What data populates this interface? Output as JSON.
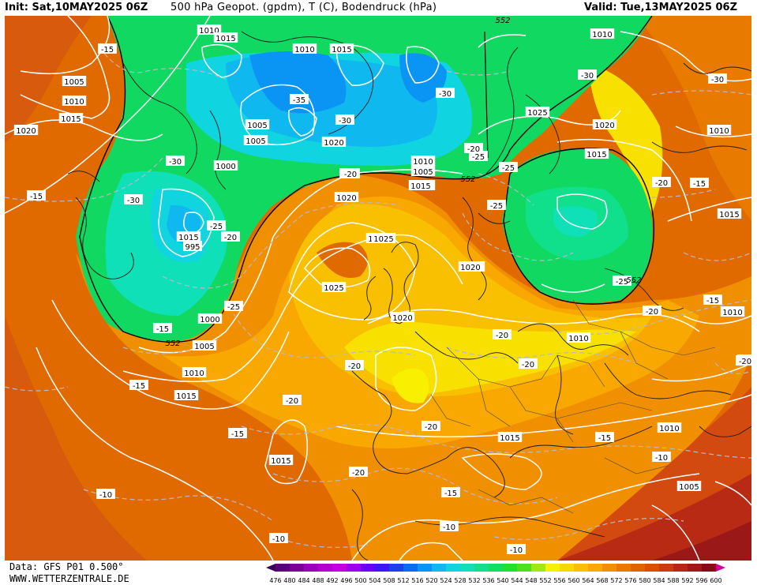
{
  "header": {
    "init": "Init: Sat,10MAY2025 06Z",
    "title": "500 hPa Geopot. (gpdm), T (C), Bodendruck (hPa)",
    "valid": "Valid: Tue,13MAY2025 06Z"
  },
  "footer": {
    "data_source": "Data: GFS P01 0.500°",
    "website": "WWW.WETTERZENTRALE.DE"
  },
  "legend": {
    "values": [
      476,
      480,
      484,
      488,
      492,
      496,
      500,
      504,
      508,
      512,
      516,
      520,
      524,
      528,
      532,
      536,
      540,
      544,
      548,
      552,
      556,
      560,
      564,
      568,
      572,
      576,
      580,
      584,
      588,
      592,
      596,
      600
    ],
    "colors": [
      "#3c0056",
      "#5a0078",
      "#7a0098",
      "#9a00b8",
      "#b400cc",
      "#c400e0",
      "#9c00f0",
      "#6a00f8",
      "#3c18f8",
      "#1a40f0",
      "#0a6cf0",
      "#0a94f4",
      "#10b8f0",
      "#10d4e0",
      "#10e0b8",
      "#10e08c",
      "#10e060",
      "#20e030",
      "#50e020",
      "#a0e810",
      "#f8f000",
      "#f8d800",
      "#f8c000",
      "#f8a800",
      "#f09000",
      "#e87800",
      "#e06400",
      "#d85000",
      "#c83c10",
      "#b82810",
      "#a01818",
      "#880a14",
      "#d0009c"
    ]
  },
  "map": {
    "isobars": [
      "1010",
      "1015",
      "1005",
      "1010",
      "1015",
      "1020",
      "1010",
      "1015",
      "1005",
      "1020",
      "1005",
      "1010",
      "1025",
      "1010",
      "1000",
      "1005",
      "1010",
      "1015",
      "1025",
      "1020",
      "1020",
      "1025",
      "1020",
      "1015",
      "995",
      "1015",
      "1025",
      "1020",
      "1010",
      "1015",
      "1000",
      "1005",
      "1010",
      "1015",
      "1010",
      "1020",
      "1015",
      "1010",
      "1015",
      "1010",
      "1005"
    ],
    "isotherms": [
      "-15",
      "-30",
      "-35",
      "-30",
      "-30",
      "-30",
      "-30",
      "-30",
      "-25",
      "-25",
      "-25",
      "-20",
      "-20",
      "-15",
      "-15",
      "-25",
      "-20",
      "-20",
      "-20",
      "-20",
      "-20",
      "-20",
      "-20",
      "-15",
      "-15",
      "-15",
      "-10",
      "-10",
      "-10",
      "-10",
      "-10",
      "-15",
      "-20",
      "-20",
      "-15",
      "-15",
      "-20",
      "-25",
      "-25",
      "-15",
      "-20"
    ],
    "heights": [
      "552",
      "552",
      "552",
      "552"
    ]
  }
}
